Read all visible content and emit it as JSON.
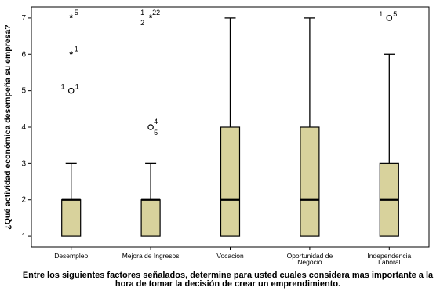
{
  "chart_data": {
    "type": "boxplot",
    "title": "",
    "xlabel": "Entre los siguientes factores señalados, determine para usted cuales considera mas importante a la hora de tomar la decisión de crear un emprendimiento.",
    "ylabel": "¿Qué actividad económica desempeña su empresa?",
    "ylim": [
      0.7,
      7.3
    ],
    "yticks": [
      "1",
      "2",
      "3",
      "4",
      "5",
      "6",
      "7"
    ],
    "grid": false,
    "categories": [
      {
        "label": [
          "Desempleo"
        ]
      },
      {
        "label": [
          "Mejora de Ingresos"
        ]
      },
      {
        "label": [
          "Vocacion"
        ]
      },
      {
        "label": [
          "Oportunidad de",
          "Negocio"
        ]
      },
      {
        "label": [
          "Independencia",
          "Laboral"
        ]
      }
    ],
    "boxes": [
      {
        "min": 1,
        "q1": 1,
        "median": 2,
        "q3": 2,
        "max": 3,
        "outliers": [
          {
            "y": 5,
            "marker": "circle",
            "labels": [
              "1",
              "1"
            ]
          },
          {
            "y": 6,
            "marker": "star",
            "labels": [
              "1"
            ]
          },
          {
            "y": 7,
            "marker": "star",
            "labels": [
              "5"
            ]
          }
        ]
      },
      {
        "min": 1,
        "q1": 1,
        "median": 2,
        "q3": 2,
        "max": 3,
        "outliers": [
          {
            "y": 4,
            "marker": "circle",
            "labels": [
              "4",
              "5"
            ]
          },
          {
            "y": 7,
            "marker": "star",
            "labels": [
              "1",
              "22",
              "2"
            ]
          }
        ]
      },
      {
        "min": 1,
        "q1": 1,
        "median": 2,
        "q3": 4,
        "max": 7,
        "outliers": []
      },
      {
        "min": 1,
        "q1": 1,
        "median": 2,
        "q3": 4,
        "max": 7,
        "outliers": []
      },
      {
        "min": 1,
        "q1": 1,
        "median": 2,
        "q3": 3,
        "max": 6,
        "outliers": [
          {
            "y": 7,
            "marker": "circle",
            "labels": [
              "1",
              "5"
            ]
          }
        ]
      }
    ],
    "colors": {
      "box_fill": "#d8d29c",
      "box_stroke": "#000000",
      "plot_frame": "#000000"
    }
  }
}
